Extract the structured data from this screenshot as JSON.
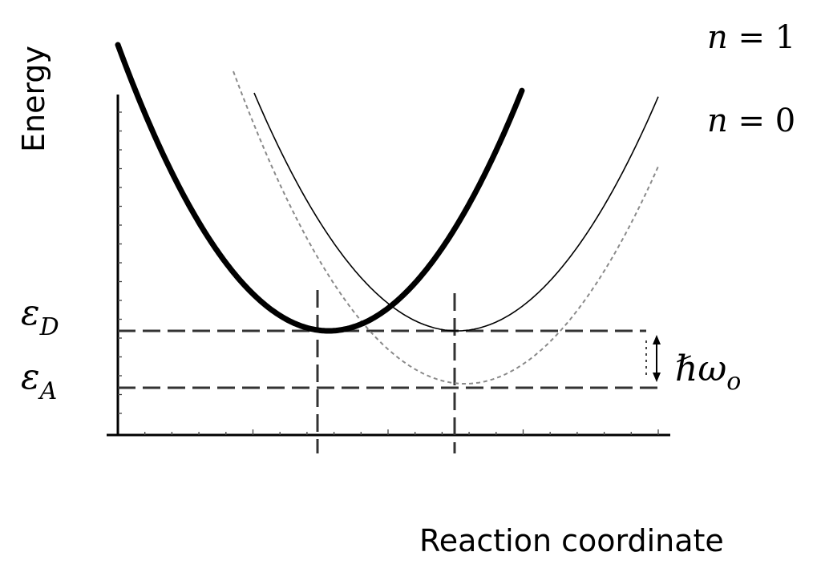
{
  "axis": {
    "y_label": "Energy",
    "x_label": "Reaction coordinate"
  },
  "levels": {
    "donor_label": {
      "base": "ε",
      "sub": "D"
    },
    "acceptor_label": {
      "base": "ε",
      "sub": "A"
    }
  },
  "quantum_gap": {
    "hbar": "ℏ",
    "omega": "ω",
    "sub": "o"
  },
  "curve_labels": {
    "upper": {
      "var": "n",
      "eq": " = 1"
    },
    "lower": {
      "var": "n",
      "eq": " = 0"
    }
  },
  "curves": [
    {
      "name": "donor",
      "style": "thick-solid",
      "color": "#000000"
    },
    {
      "name": "acceptor-n1",
      "style": "thin-solid",
      "color": "#000000"
    },
    {
      "name": "acceptor-n0",
      "style": "dotted",
      "color": "#888888"
    }
  ]
}
